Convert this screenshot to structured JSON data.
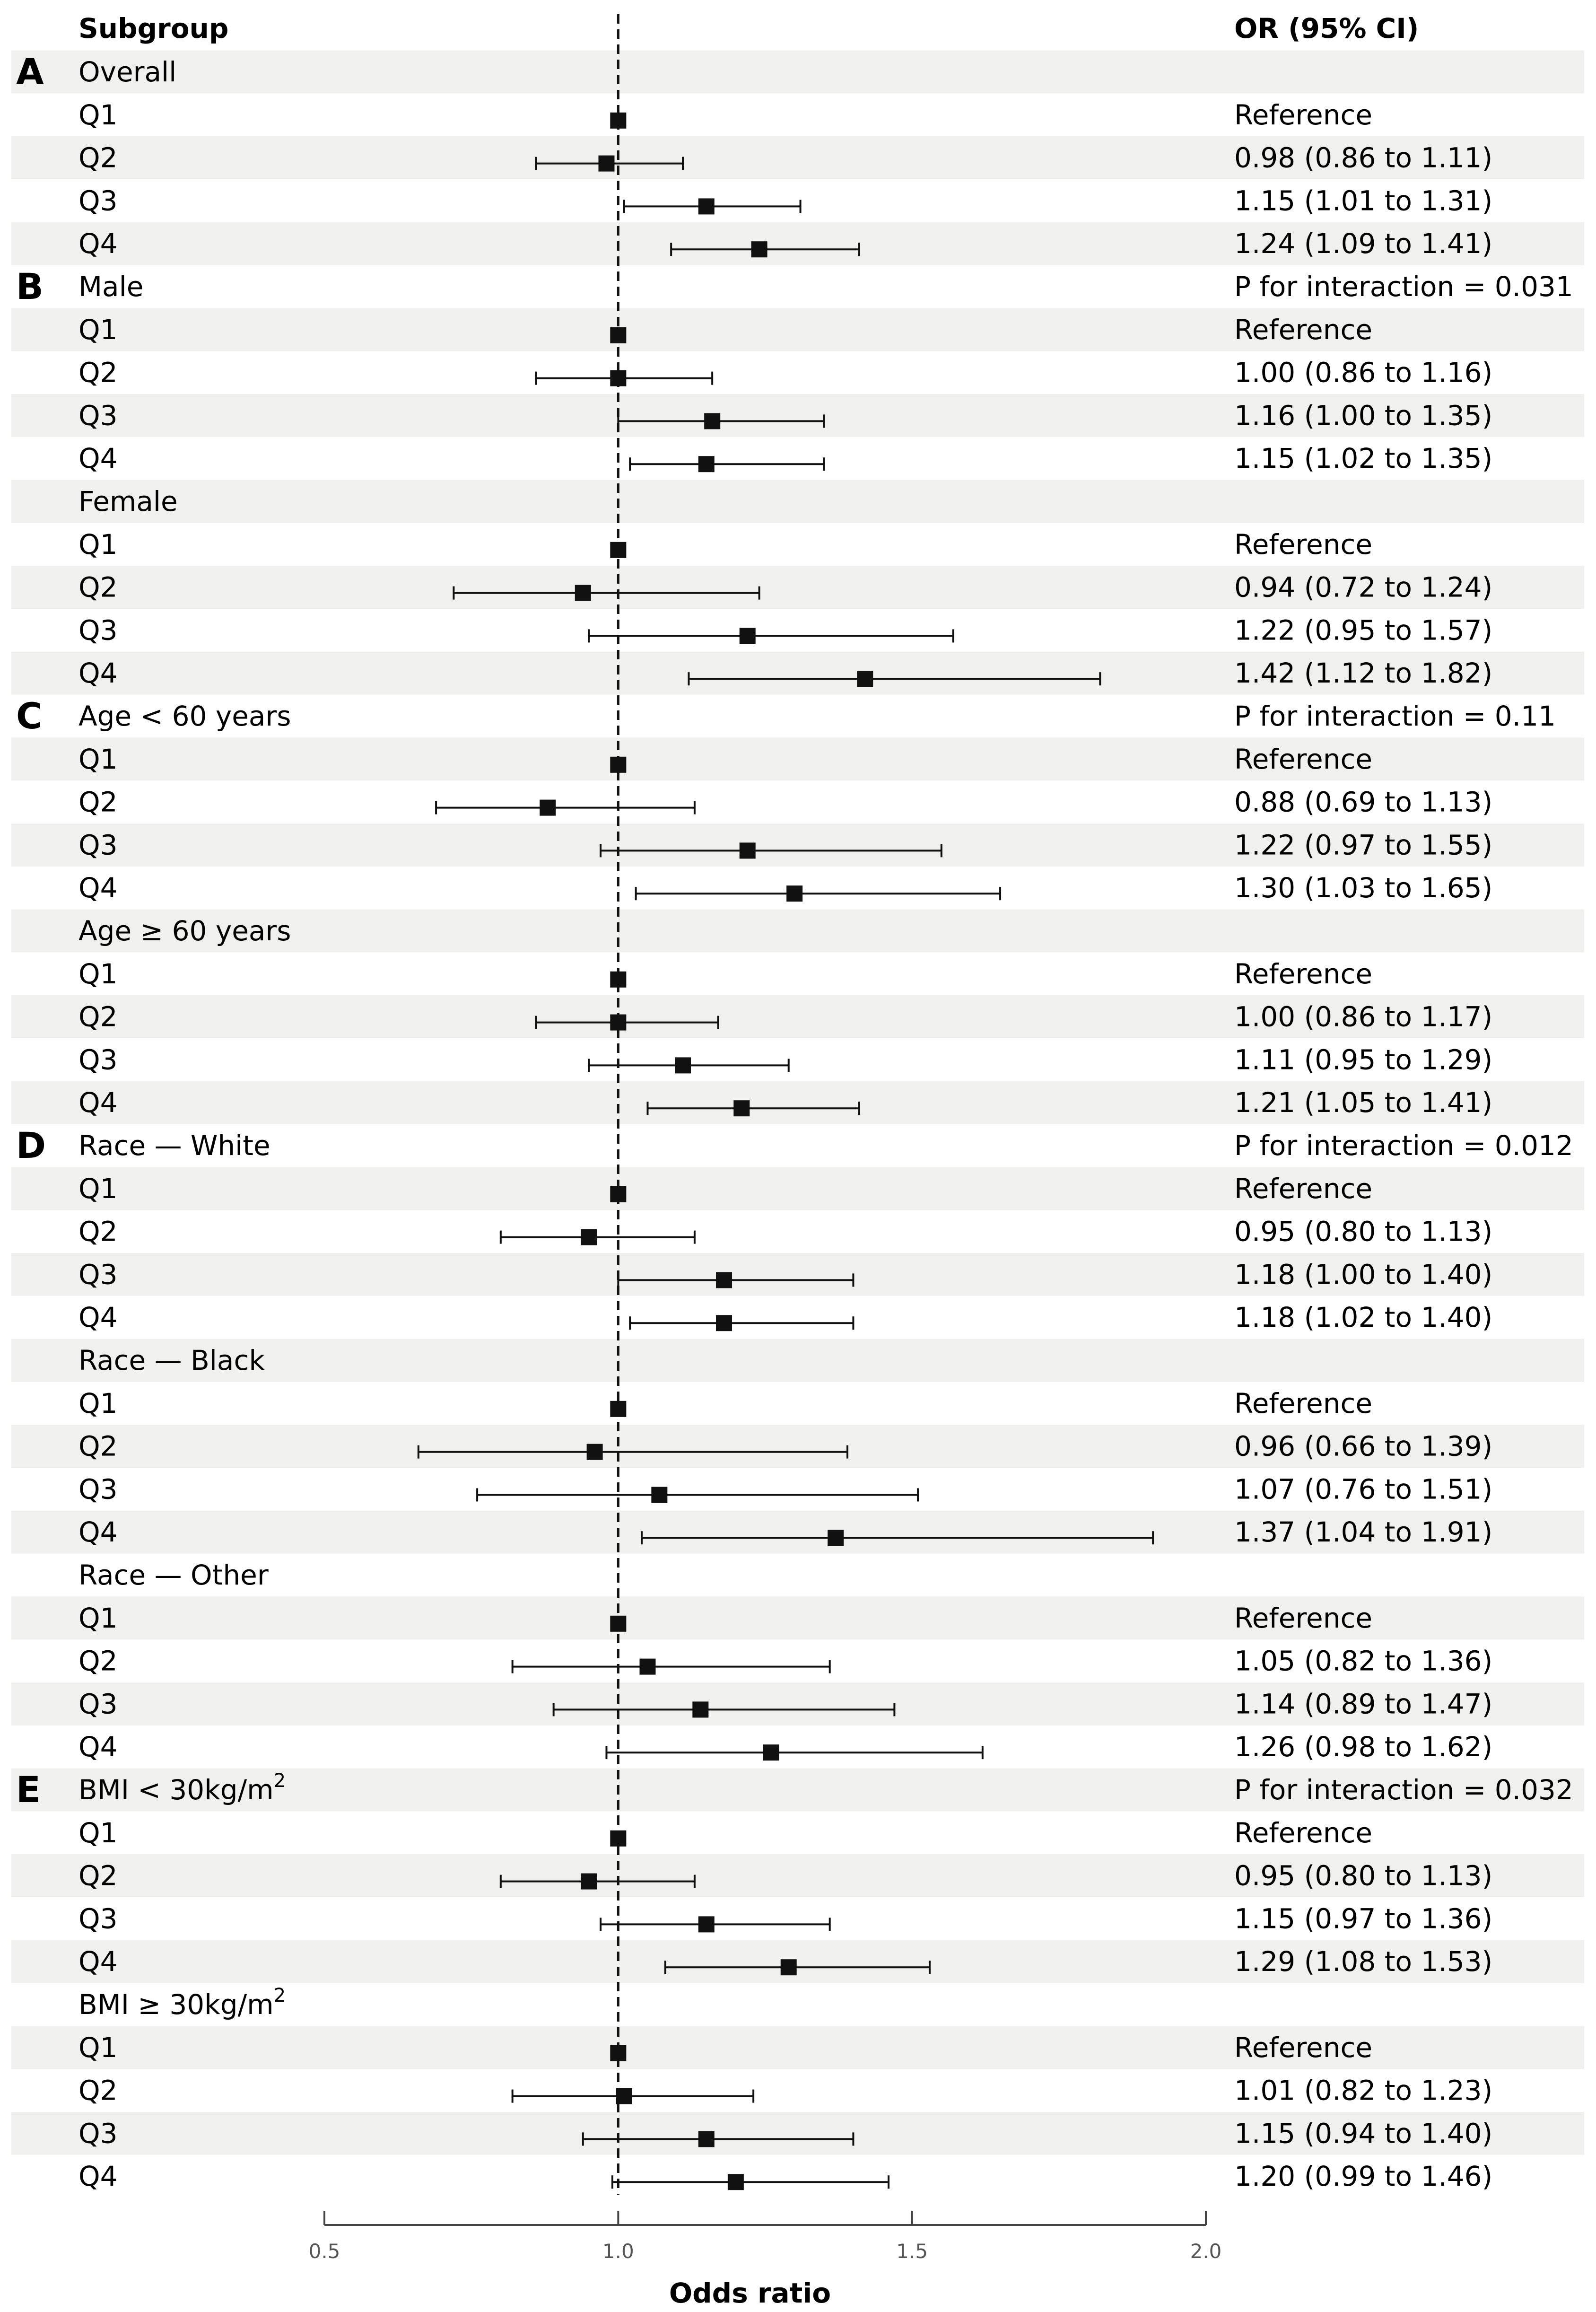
{
  "chart_data": {
    "type": "forest",
    "header": {
      "subgroup": "Subgroup",
      "ci": "OR (95% CI)"
    },
    "xlabel": "Odds ratio",
    "xlim": [
      0.5,
      2.0
    ],
    "xticks": [
      0.5,
      1.0,
      1.5,
      2.0
    ],
    "xtick_labels": [
      "0.5",
      "1.0",
      "1.5",
      "2.0"
    ],
    "reference_line": 1.0,
    "colors": {
      "band": "#f0f1ef",
      "marker": "#111111",
      "line": "#111111"
    },
    "rows": [
      {
        "section": "A",
        "label": "Overall",
        "kind": "group",
        "text": ""
      },
      {
        "label": "Q1",
        "kind": "item",
        "or": 1.0,
        "lo": null,
        "hi": null,
        "text": "Reference"
      },
      {
        "label": "Q2",
        "kind": "item",
        "or": 0.98,
        "lo": 0.86,
        "hi": 1.11,
        "text": "0.98 (0.86 to 1.11)"
      },
      {
        "label": "Q3",
        "kind": "item",
        "or": 1.15,
        "lo": 1.01,
        "hi": 1.31,
        "text": "1.15 (1.01 to 1.31)"
      },
      {
        "label": "Q4",
        "kind": "item",
        "or": 1.24,
        "lo": 1.09,
        "hi": 1.41,
        "text": "1.24 (1.09 to 1.41)"
      },
      {
        "section": "B",
        "label": "Male",
        "kind": "group",
        "text": "P for interaction = 0.031"
      },
      {
        "label": "Q1",
        "kind": "item",
        "or": 1.0,
        "lo": null,
        "hi": null,
        "text": "Reference"
      },
      {
        "label": "Q2",
        "kind": "item",
        "or": 1.0,
        "lo": 0.86,
        "hi": 1.16,
        "text": "1.00 (0.86 to 1.16)"
      },
      {
        "label": "Q3",
        "kind": "item",
        "or": 1.16,
        "lo": 1.0,
        "hi": 1.35,
        "text": "1.16 (1.00 to 1.35)"
      },
      {
        "label": "Q4",
        "kind": "item",
        "or": 1.15,
        "lo": 1.02,
        "hi": 1.35,
        "text": "1.15 (1.02 to 1.35)"
      },
      {
        "label": "Female",
        "kind": "group",
        "text": ""
      },
      {
        "label": "Q1",
        "kind": "item",
        "or": 1.0,
        "lo": null,
        "hi": null,
        "text": "Reference"
      },
      {
        "label": "Q2",
        "kind": "item",
        "or": 0.94,
        "lo": 0.72,
        "hi": 1.24,
        "text": "0.94 (0.72 to 1.24)"
      },
      {
        "label": "Q3",
        "kind": "item",
        "or": 1.22,
        "lo": 0.95,
        "hi": 1.57,
        "text": "1.22 (0.95 to 1.57)"
      },
      {
        "label": "Q4",
        "kind": "item",
        "or": 1.42,
        "lo": 1.12,
        "hi": 1.82,
        "text": "1.42 (1.12 to 1.82)"
      },
      {
        "section": "C",
        "label": "Age < 60 years",
        "kind": "group",
        "text": "P for interaction = 0.11"
      },
      {
        "label": "Q1",
        "kind": "item",
        "or": 1.0,
        "lo": null,
        "hi": null,
        "text": "Reference"
      },
      {
        "label": "Q2",
        "kind": "item",
        "or": 0.88,
        "lo": 0.69,
        "hi": 1.13,
        "text": "0.88 (0.69 to 1.13)"
      },
      {
        "label": "Q3",
        "kind": "item",
        "or": 1.22,
        "lo": 0.97,
        "hi": 1.55,
        "text": "1.22 (0.97 to 1.55)"
      },
      {
        "label": "Q4",
        "kind": "item",
        "or": 1.3,
        "lo": 1.03,
        "hi": 1.65,
        "text": "1.30 (1.03 to 1.65)"
      },
      {
        "label": "Age ≥ 60 years",
        "kind": "group",
        "text": ""
      },
      {
        "label": "Q1",
        "kind": "item",
        "or": 1.0,
        "lo": null,
        "hi": null,
        "text": "Reference"
      },
      {
        "label": "Q2",
        "kind": "item",
        "or": 1.0,
        "lo": 0.86,
        "hi": 1.17,
        "text": "1.00 (0.86 to 1.17)"
      },
      {
        "label": "Q3",
        "kind": "item",
        "or": 1.11,
        "lo": 0.95,
        "hi": 1.29,
        "text": "1.11 (0.95 to 1.29)"
      },
      {
        "label": "Q4",
        "kind": "item",
        "or": 1.21,
        "lo": 1.05,
        "hi": 1.41,
        "text": "1.21 (1.05 to 1.41)"
      },
      {
        "section": "D",
        "label": "Race — White",
        "kind": "group",
        "text": "P for interaction = 0.012"
      },
      {
        "label": "Q1",
        "kind": "item",
        "or": 1.0,
        "lo": null,
        "hi": null,
        "text": "Reference"
      },
      {
        "label": "Q2",
        "kind": "item",
        "or": 0.95,
        "lo": 0.8,
        "hi": 1.13,
        "text": "0.95 (0.80 to 1.13)"
      },
      {
        "label": "Q3",
        "kind": "item",
        "or": 1.18,
        "lo": 1.0,
        "hi": 1.4,
        "text": "1.18 (1.00 to 1.40)"
      },
      {
        "label": "Q4",
        "kind": "item",
        "or": 1.18,
        "lo": 1.02,
        "hi": 1.4,
        "text": "1.18 (1.02 to 1.40)"
      },
      {
        "label": "Race — Black",
        "kind": "group",
        "text": ""
      },
      {
        "label": "Q1",
        "kind": "item",
        "or": 1.0,
        "lo": null,
        "hi": null,
        "text": "Reference"
      },
      {
        "label": "Q2",
        "kind": "item",
        "or": 0.96,
        "lo": 0.66,
        "hi": 1.39,
        "text": "0.96 (0.66 to 1.39)"
      },
      {
        "label": "Q3",
        "kind": "item",
        "or": 1.07,
        "lo": 0.76,
        "hi": 1.51,
        "text": "1.07 (0.76 to 1.51)"
      },
      {
        "label": "Q4",
        "kind": "item",
        "or": 1.37,
        "lo": 1.04,
        "hi": 1.91,
        "text": "1.37 (1.04 to 1.91)"
      },
      {
        "label": "Race — Other",
        "kind": "group",
        "text": ""
      },
      {
        "label": "Q1",
        "kind": "item",
        "or": 1.0,
        "lo": null,
        "hi": null,
        "text": "Reference"
      },
      {
        "label": "Q2",
        "kind": "item",
        "or": 1.05,
        "lo": 0.82,
        "hi": 1.36,
        "text": "1.05 (0.82 to 1.36)"
      },
      {
        "label": "Q3",
        "kind": "item",
        "or": 1.14,
        "lo": 0.89,
        "hi": 1.47,
        "text": "1.14 (0.89 to 1.47)"
      },
      {
        "label": "Q4",
        "kind": "item",
        "or": 1.26,
        "lo": 0.98,
        "hi": 1.62,
        "text": "1.26 (0.98 to 1.62)"
      },
      {
        "section": "E",
        "label": "BMI < 30kg/m",
        "sup": "2",
        "kind": "group",
        "text": "P for interaction = 0.032"
      },
      {
        "label": "Q1",
        "kind": "item",
        "or": 1.0,
        "lo": null,
        "hi": null,
        "text": "Reference"
      },
      {
        "label": "Q2",
        "kind": "item",
        "or": 0.95,
        "lo": 0.8,
        "hi": 1.13,
        "text": "0.95 (0.80 to 1.13)"
      },
      {
        "label": "Q3",
        "kind": "item",
        "or": 1.15,
        "lo": 0.97,
        "hi": 1.36,
        "text": "1.15 (0.97 to 1.36)"
      },
      {
        "label": "Q4",
        "kind": "item",
        "or": 1.29,
        "lo": 1.08,
        "hi": 1.53,
        "text": "1.29 (1.08 to 1.53)"
      },
      {
        "label": "BMI ≥ 30kg/m",
        "sup": "2",
        "kind": "group",
        "text": ""
      },
      {
        "label": "Q1",
        "kind": "item",
        "or": 1.0,
        "lo": null,
        "hi": null,
        "text": "Reference"
      },
      {
        "label": "Q2",
        "kind": "item",
        "or": 1.01,
        "lo": 0.82,
        "hi": 1.23,
        "text": "1.01 (0.82 to 1.23)"
      },
      {
        "label": "Q3",
        "kind": "item",
        "or": 1.15,
        "lo": 0.94,
        "hi": 1.4,
        "text": "1.15 (0.94 to 1.40)"
      },
      {
        "label": "Q4",
        "kind": "item",
        "or": 1.2,
        "lo": 0.99,
        "hi": 1.46,
        "text": "1.20 (0.99 to 1.46)"
      }
    ]
  }
}
